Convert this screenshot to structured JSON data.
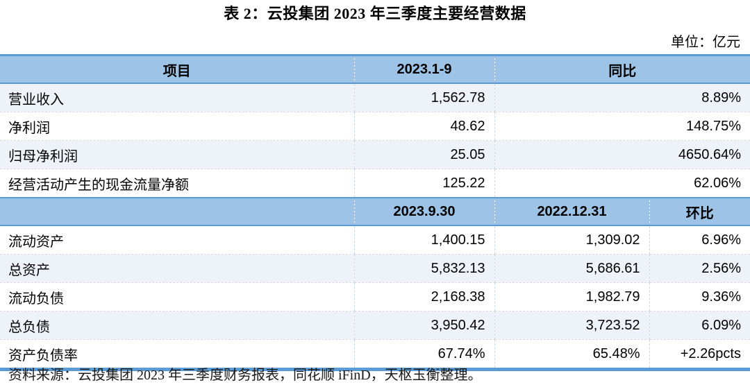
{
  "page": {
    "title": "表 2：云投集团 2023 年三季度主要经营数据",
    "unit_label": "单位：亿元",
    "source_note": "资料来源：云投集团 2023 年三季度财务报表，同花顺 iFinD，天枢玉衡整理。"
  },
  "colors": {
    "header_bg": "#9DC3E6",
    "alt_row_bg": "#EEF3FA",
    "accent_border": "#5B9BD5"
  },
  "table": {
    "section1": {
      "headers": [
        "项目",
        "2023.1-9",
        "同比"
      ],
      "rows": [
        {
          "label": "营业收入",
          "value": "1,562.78",
          "yoy": "8.89%"
        },
        {
          "label": "净利润",
          "value": "48.62",
          "yoy": "148.75%"
        },
        {
          "label": "归母净利润",
          "value": "25.05",
          "yoy": "4650.64%"
        },
        {
          "label": "经营活动产生的现金流量净额",
          "value": "125.22",
          "yoy": "62.06%"
        }
      ]
    },
    "section2": {
      "headers": [
        "",
        "2023.9.30",
        "2022.12.31",
        "环比"
      ],
      "rows": [
        {
          "label": "流动资产",
          "v1": "1,400.15",
          "v2": "1,309.02",
          "qoq": "6.96%"
        },
        {
          "label": "总资产",
          "v1": "5,832.13",
          "v2": "5,686.61",
          "qoq": "2.56%"
        },
        {
          "label": "流动负债",
          "v1": "2,168.38",
          "v2": "1,982.79",
          "qoq": "9.36%"
        },
        {
          "label": "总负债",
          "v1": "3,950.42",
          "v2": "3,723.52",
          "qoq": "6.09%"
        },
        {
          "label": "资产负债率",
          "v1": "67.74%",
          "v2": "65.48%",
          "qoq": "+2.26pcts"
        }
      ]
    }
  }
}
